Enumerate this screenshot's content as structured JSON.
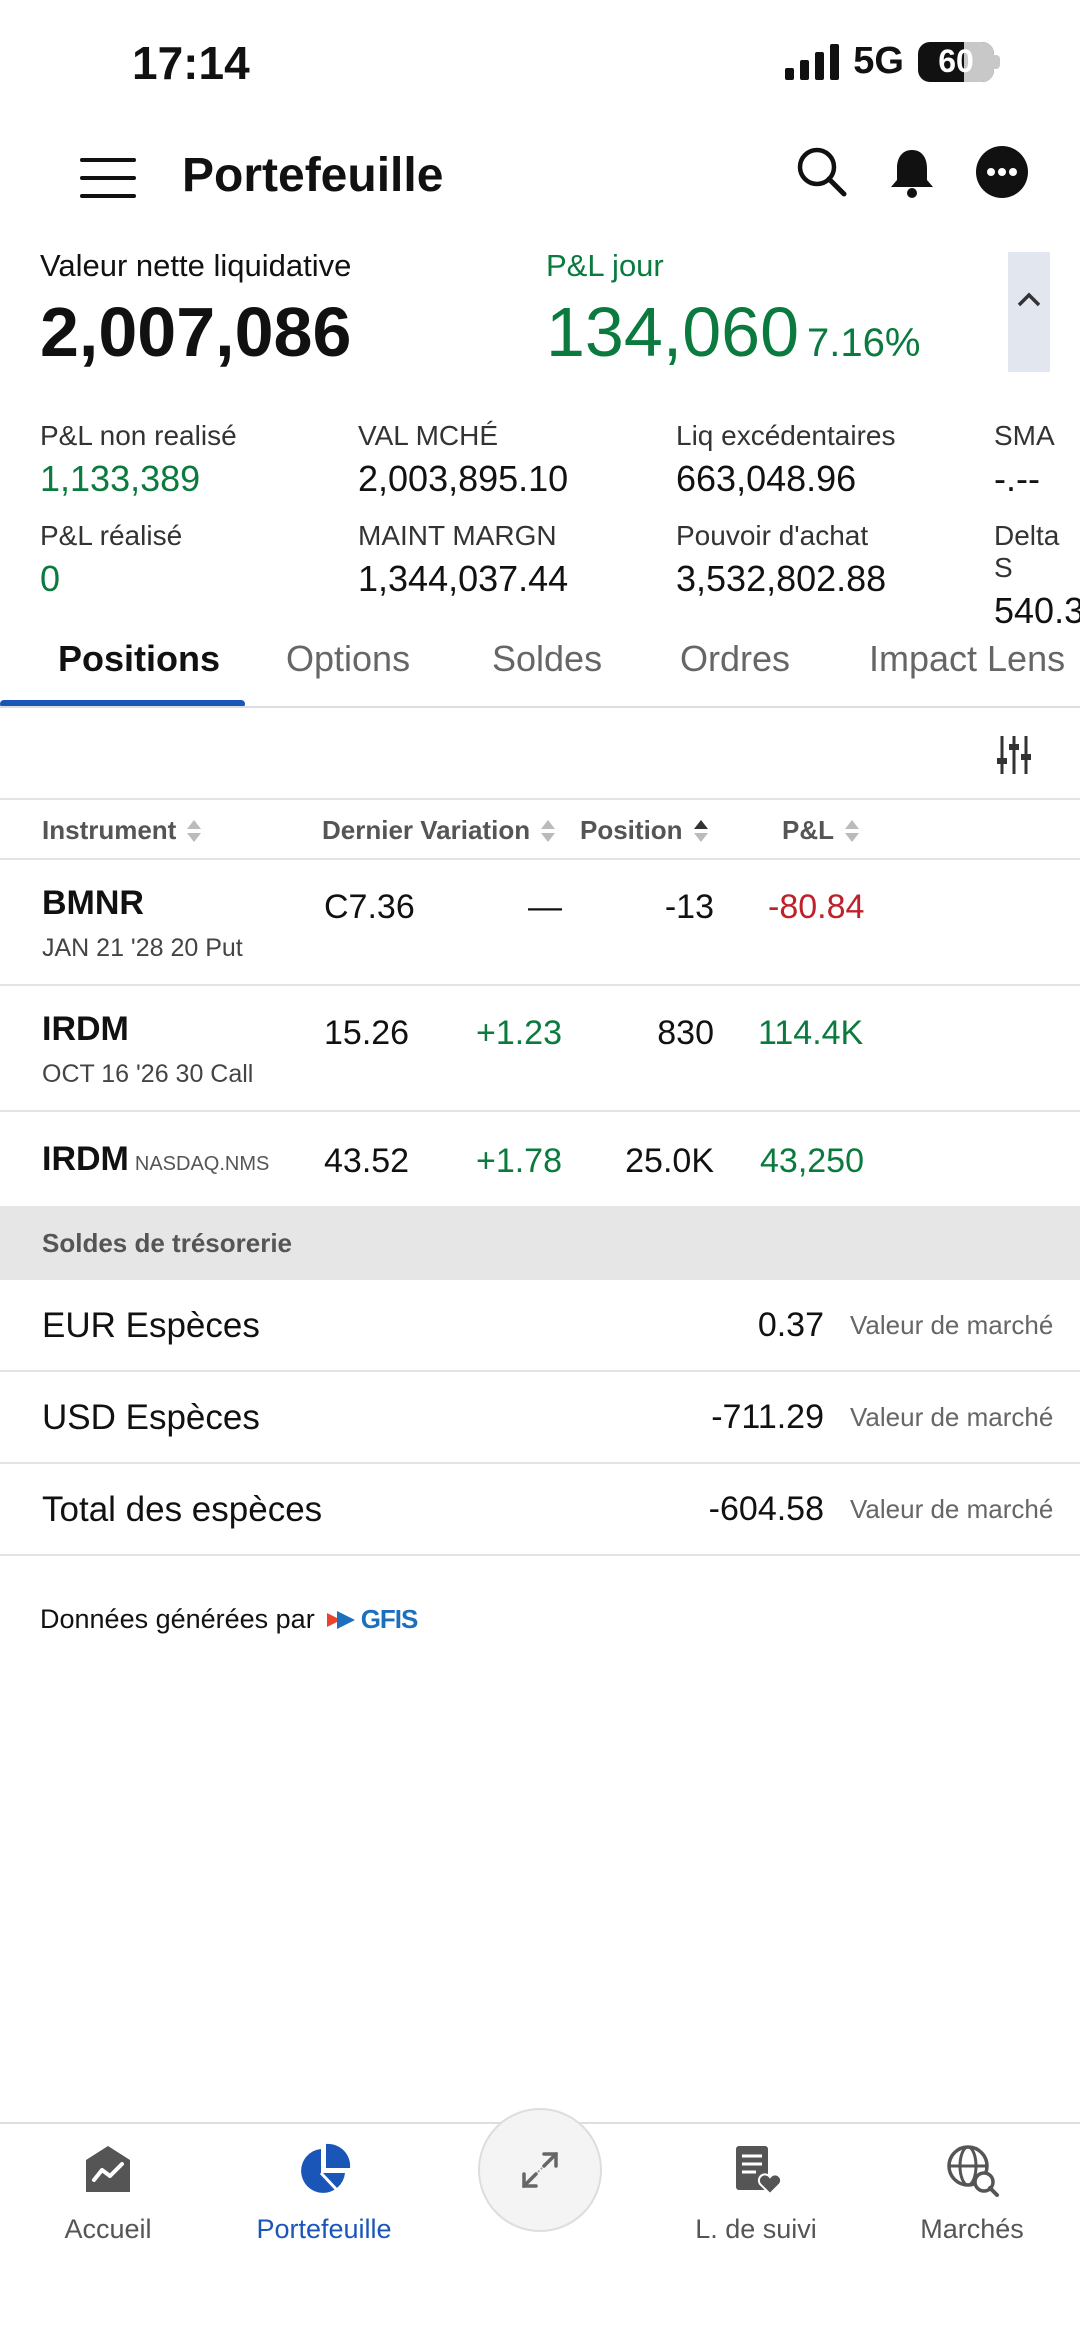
{
  "status_bar": {
    "time": "17:14",
    "network": "5G",
    "battery": "60"
  },
  "header": {
    "title": "Portefeuille"
  },
  "summary": {
    "nlv_label": "Valeur nette liquidative",
    "nlv_value": "2,007,086",
    "pl_day_label": "P&L jour",
    "pl_day_value": "134,060",
    "pl_day_pct": "7.16%"
  },
  "metrics": [
    {
      "label": "P&L non realisé",
      "value": "1,133,389",
      "tone": "green"
    },
    {
      "label": "VAL MCHÉ",
      "value": "2,003,895.10",
      "tone": "neutral"
    },
    {
      "label": "Liq excédentaires",
      "value": "663,048.96",
      "tone": "neutral"
    },
    {
      "label": "SMA",
      "value": "-.--",
      "tone": "neutral"
    },
    {
      "label": "P&L réalisé",
      "value": "0",
      "tone": "green"
    },
    {
      "label": "MAINT MARGN",
      "value": "1,344,037.44",
      "tone": "neutral"
    },
    {
      "label": "Pouvoir d'achat",
      "value": "3,532,802.88",
      "tone": "neutral"
    },
    {
      "label": "Delta S",
      "value": "540.3",
      "tone": "neutral"
    }
  ],
  "tabs": [
    "Positions",
    "Options",
    "Soldes",
    "Ordres",
    "Impact Lens"
  ],
  "columns": {
    "instrument": "Instrument",
    "last_change": "Dernier Variation",
    "position": "Position",
    "pl": "P&L"
  },
  "positions": [
    {
      "symbol": "BMNR",
      "exchange": "",
      "desc": "JAN 21 '28 20 Put",
      "last": "C7.36",
      "change": "—",
      "change_tone": "neutral",
      "position": "-13",
      "pl": "-80.84",
      "pl_tone": "red"
    },
    {
      "symbol": "IRDM",
      "exchange": "",
      "desc": "OCT 16 '26 30 Call",
      "last": "15.26",
      "change": "+1.23",
      "change_tone": "green",
      "position": "830",
      "pl": "114.4K",
      "pl_tone": "green"
    },
    {
      "symbol": "IRDM",
      "exchange": "NASDAQ.NMS",
      "desc": "",
      "last": "43.52",
      "change": "+1.78",
      "change_tone": "green",
      "position": "25.0K",
      "pl": "43,250",
      "pl_tone": "green"
    }
  ],
  "cash": {
    "header": "Soldes de trésorerie",
    "rows": [
      {
        "label": "EUR Espèces",
        "value": "0.37",
        "kind": "Valeur de marché"
      },
      {
        "label": "USD Espèces",
        "value": "-711.29",
        "kind": "Valeur de marché"
      },
      {
        "label": "Total des espèces",
        "value": "-604.58",
        "kind": "Valeur de marché"
      }
    ]
  },
  "footer": {
    "data_by": "Données générées par",
    "provider": "GFIS"
  },
  "bottom_nav": [
    {
      "label": "Accueil",
      "icon": "home-chart-icon"
    },
    {
      "label": "Portefeuille",
      "icon": "pie-chart-icon",
      "active": true
    },
    {
      "label": "L. de suivi",
      "icon": "watchlist-icon"
    },
    {
      "label": "Marchés",
      "icon": "globe-search-icon"
    }
  ],
  "colors": {
    "accent": "#1a56b8",
    "green": "#0a7a3e",
    "red": "#c0202a"
  }
}
